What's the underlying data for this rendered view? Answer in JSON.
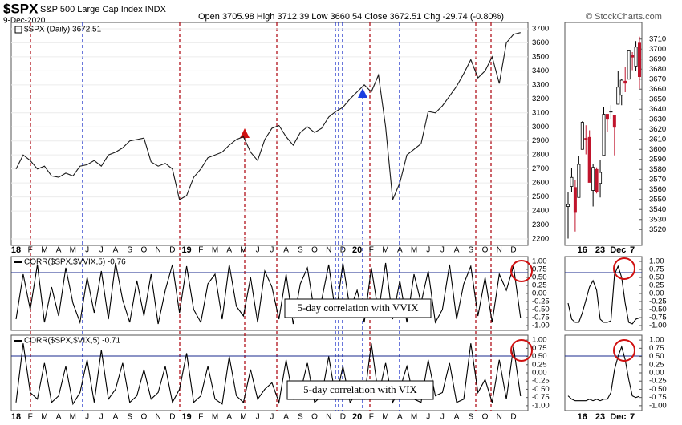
{
  "chart_data": [
    {
      "type": "line",
      "title": "$SPX",
      "subtitle": "S&P 500 Large Cap Index INDX",
      "date_label": "9-Dec-2020",
      "ohlc_label": "Open 3705.98 High 3712.39 Low 3660.54 Close 3672.51 Chg -29.74 (-0.80%)",
      "credit": "© StockCharts.com",
      "legend": "$SPX (Daily) 3672.51",
      "color": "#1a1a1a",
      "grid": true,
      "categories": [
        "18",
        null,
        "F",
        null,
        "M",
        null,
        "A",
        null,
        "M",
        null,
        "J",
        null,
        "J",
        null,
        "A",
        null,
        "S",
        null,
        "O",
        null,
        "N",
        null,
        "D",
        null,
        "19",
        null,
        "F",
        null,
        "M",
        null,
        "A",
        null,
        "M",
        null,
        "J",
        null,
        "J",
        null,
        "A",
        null,
        "S",
        null,
        "O",
        null,
        "N",
        null,
        "D",
        null,
        "20",
        null,
        "F",
        null,
        "M",
        null,
        "A",
        null,
        "M",
        null,
        "J",
        null,
        "J",
        null,
        "A",
        null,
        "S",
        null,
        "O",
        null,
        "N",
        null,
        "D",
        null
      ],
      "values": [
        2700,
        2800,
        2760,
        2700,
        2720,
        2650,
        2640,
        2670,
        2650,
        2720,
        2730,
        2760,
        2720,
        2800,
        2820,
        2850,
        2900,
        2910,
        2920,
        2750,
        2720,
        2740,
        2700,
        2480,
        2510,
        2640,
        2700,
        2780,
        2800,
        2820,
        2870,
        2910,
        2930,
        2820,
        2760,
        2910,
        2990,
        3010,
        2930,
        2870,
        2960,
        3000,
        2960,
        2990,
        3070,
        3110,
        3140,
        3200,
        3250,
        3300,
        3250,
        3370,
        3000,
        2480,
        2600,
        2800,
        2840,
        2880,
        3110,
        3100,
        3150,
        3220,
        3290,
        3380,
        3480,
        3350,
        3400,
        3500,
        3310,
        3600,
        3660,
        3672.51
      ],
      "ylim": [
        2160,
        3734
      ],
      "yticks": [
        2200,
        2300,
        2400,
        2500,
        2600,
        2700,
        2800,
        2900,
        3000,
        3100,
        3200,
        3300,
        3400,
        3500,
        3600,
        3700
      ]
    },
    {
      "type": "line",
      "legend": "CORR($SPX,$VVIX,5) -0.76",
      "annotation": "5-day correlation with VVIX",
      "color": "#000000",
      "values": [
        -0.8,
        0.6,
        -0.5,
        0.9,
        -0.9,
        0.2,
        -0.7,
        0.8,
        -0.3,
        -0.9,
        0.5,
        -0.6,
        0.7,
        -0.8,
        0.95,
        -0.2,
        -0.9,
        0.4,
        -0.7,
        0.6,
        -0.95,
        0.1,
        0.9,
        -0.6,
        0.85,
        -0.5,
        -0.9,
        0.3,
        0.6,
        -0.8,
        0.9,
        -0.4,
        -0.7,
        0.5,
        -0.9,
        0.7,
        0.2,
        -0.8,
        0.6,
        -0.95,
        0.3,
        0.8,
        -0.6,
        -0.2,
        0.9,
        -0.7,
        0.95,
        -0.5,
        0.1,
        -0.9,
        0.8,
        -0.6,
        0.95,
        -0.8,
        0.4,
        -0.9,
        0.6,
        -0.3,
        0.7,
        -0.9,
        -0.5,
        0.9,
        -0.8,
        0.3,
        0.85,
        -0.7,
        0.5,
        -0.9,
        0.6,
        0.1,
        0.85,
        -0.76
      ],
      "ylim": [
        -1.15,
        1.15
      ],
      "yticks": [
        {
          "value": 1,
          "label": "1.00"
        },
        {
          "value": 0.75,
          "label": "0.75"
        },
        {
          "value": 0.5,
          "label": "0.50"
        },
        {
          "value": 0.25,
          "label": "0.25"
        },
        {
          "value": 0,
          "label": "0.00"
        },
        {
          "value": -0.25,
          "label": "-0.25"
        },
        {
          "value": -0.5,
          "label": "-0.50"
        },
        {
          "value": -0.75,
          "label": "-0.75"
        },
        {
          "value": -1,
          "label": "-1.00"
        }
      ]
    },
    {
      "type": "line",
      "legend": "CORR($SPX,$VIX,5) -0.71",
      "annotation": "5-day correlation with VIX",
      "color": "#000000",
      "categories": [
        "18",
        null,
        "F",
        null,
        "M",
        null,
        "A",
        null,
        "M",
        null,
        "J",
        null,
        "J",
        null,
        "A",
        null,
        "S",
        null,
        "O",
        null,
        "N",
        null,
        "D",
        null,
        "19",
        null,
        "F",
        null,
        "M",
        null,
        "A",
        null,
        "M",
        null,
        "J",
        null,
        "J",
        null,
        "A",
        null,
        "S",
        null,
        "O",
        null,
        "N",
        null,
        "D",
        null,
        "20",
        null,
        "F",
        null,
        "M",
        null,
        "A",
        null,
        "M",
        null,
        "J",
        null,
        "J",
        null,
        "A",
        null,
        "S",
        null,
        "O",
        null,
        "N",
        null,
        "D",
        null
      ],
      "values": [
        -0.9,
        0.9,
        -0.6,
        -0.8,
        0.3,
        -0.9,
        -0.7,
        0.2,
        -0.95,
        -0.6,
        0.4,
        -0.9,
        0.7,
        -0.8,
        -0.5,
        0.3,
        -0.9,
        -0.7,
        0.1,
        -0.8,
        -0.6,
        0.2,
        -0.9,
        -0.5,
        0.6,
        -0.9,
        -0.7,
        0.2,
        -0.8,
        -0.95,
        0.5,
        -0.7,
        -0.9,
        0.1,
        -0.8,
        -0.5,
        -0.3,
        -0.9,
        0.4,
        -0.8,
        -0.6,
        0.3,
        -0.9,
        -0.7,
        0.5,
        -0.8,
        0.2,
        -0.9,
        -0.6,
        -0.8,
        0.9,
        -0.7,
        0.3,
        -0.9,
        -0.5,
        0.2,
        -0.8,
        -0.9,
        0.4,
        -0.7,
        -0.6,
        0.3,
        -0.9,
        -0.8,
        0.9,
        -0.6,
        -0.2,
        -0.9,
        0.4,
        -0.8,
        0.8,
        -0.71
      ],
      "ylim": [
        -1.15,
        1.15
      ],
      "yticks": [
        {
          "value": 1,
          "label": "1.00"
        },
        {
          "value": 0.75,
          "label": "0.75"
        },
        {
          "value": 0.5,
          "label": "0.50"
        },
        {
          "value": 0.25,
          "label": "0.25"
        },
        {
          "value": 0,
          "label": "0.00"
        },
        {
          "value": -0.25,
          "label": "-0.25"
        },
        {
          "value": -0.5,
          "label": "-0.50"
        },
        {
          "value": -0.75,
          "label": "-0.75"
        },
        {
          "value": -1,
          "label": "-1.00"
        }
      ]
    },
    {
      "type": "candlestick",
      "up_color": "#000000",
      "down_color": "#c0142c",
      "categories": [
        null,
        null,
        null,
        null,
        "16",
        null,
        null,
        null,
        null,
        "23",
        null,
        null,
        null,
        null,
        "Dec",
        null,
        null,
        null,
        "7",
        null,
        null
      ],
      "open": [
        3543,
        3563,
        3562,
        3552,
        3600,
        3611,
        3612,
        3559,
        3580,
        3566,
        3594,
        3635,
        3638,
        3634,
        3645,
        3654,
        3668,
        3670,
        3694,
        3683,
        3705.98
      ],
      "high": [
        3557,
        3581,
        3569,
        3593,
        3628,
        3624,
        3619,
        3585,
        3582,
        3589,
        3642,
        3635,
        3644,
        3634,
        3678,
        3670,
        3682,
        3699,
        3697,
        3708,
        3712.39
      ],
      "low": [
        3511,
        3557,
        3518,
        3552,
        3600,
        3595,
        3567,
        3543,
        3556,
        3552,
        3594,
        3617,
        3630,
        3594,
        3645,
        3644,
        3657,
        3670,
        3679,
        3678,
        3660.54
      ],
      "close": [
        3545,
        3572,
        3537,
        3585,
        3627,
        3610,
        3567,
        3582,
        3558,
        3577,
        3635,
        3630,
        3638,
        3622,
        3662,
        3669,
        3666,
        3699,
        3692,
        3702,
        3672.51
      ],
      "ylim": [
        3505,
        3725
      ],
      "yticks": [
        3520,
        3530,
        3540,
        3550,
        3560,
        3570,
        3580,
        3590,
        3600,
        3610,
        3620,
        3630,
        3640,
        3650,
        3660,
        3670,
        3680,
        3690,
        3700,
        3710
      ]
    },
    {
      "type": "line",
      "color": "#000000",
      "values": [
        -0.3,
        -0.8,
        -0.9,
        -0.9,
        -0.6,
        -0.2,
        0.2,
        0.4,
        0.1,
        -0.8,
        -0.9,
        -0.9,
        -0.85,
        0.6,
        0.85,
        0.5,
        -0.3,
        -0.9,
        -0.95,
        -0.8,
        -0.76
      ],
      "ylim": [
        -1.15,
        1.15
      ],
      "yticks": [
        {
          "value": 1,
          "label": "1.00"
        },
        {
          "value": 0.75,
          "label": "0.75"
        },
        {
          "value": 0.5,
          "label": "0.50"
        },
        {
          "value": 0.25,
          "label": "0.25"
        },
        {
          "value": 0,
          "label": "0.00"
        },
        {
          "value": -0.25,
          "label": "-0.25"
        },
        {
          "value": -0.5,
          "label": "-0.50"
        },
        {
          "value": -0.75,
          "label": "-0.75"
        },
        {
          "value": -1,
          "label": "-1.00"
        }
      ]
    },
    {
      "type": "line",
      "color": "#000000",
      "categories": [
        null,
        null,
        null,
        null,
        "16",
        null,
        null,
        null,
        null,
        "23",
        null,
        null,
        null,
        null,
        "Dec",
        null,
        null,
        null,
        "7",
        null,
        null
      ],
      "values": [
        -0.7,
        -0.8,
        -0.85,
        -0.85,
        -0.85,
        -0.85,
        -0.8,
        -0.85,
        -0.8,
        -0.85,
        -0.8,
        -0.8,
        -0.6,
        0.1,
        0.5,
        0.8,
        0.4,
        -0.2,
        -0.7,
        -0.75,
        -0.71
      ],
      "ylim": [
        -1.15,
        1.15
      ],
      "yticks": [
        {
          "value": 1,
          "label": "1.00"
        },
        {
          "value": 0.75,
          "label": "0.75"
        },
        {
          "value": 0.5,
          "label": "0.50"
        },
        {
          "value": 0.25,
          "label": "0.25"
        },
        {
          "value": 0,
          "label": "0.00"
        },
        {
          "value": -0.25,
          "label": "-0.25"
        },
        {
          "value": -0.5,
          "label": "-0.50"
        },
        {
          "value": -0.75,
          "label": "-0.75"
        },
        {
          "value": -1,
          "label": "-1.00"
        }
      ]
    }
  ]
}
